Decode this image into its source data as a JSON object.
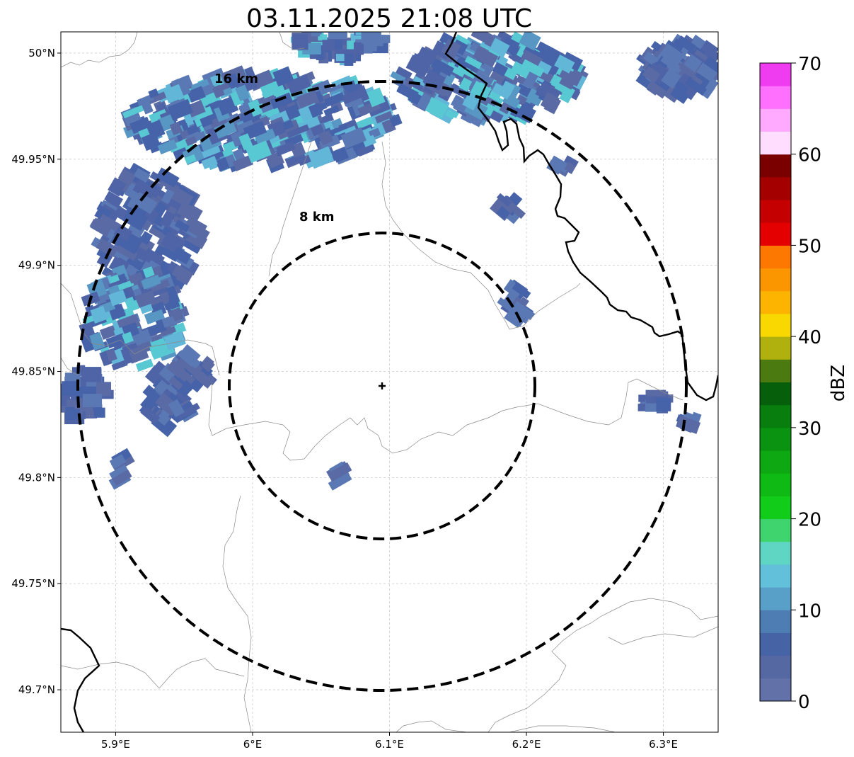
{
  "map": {
    "title": "03.11.2025 21:08 UTC",
    "x_ticks": [
      {
        "value": 5.9,
        "label": "5.9°E"
      },
      {
        "value": 6.0,
        "label": "6°E"
      },
      {
        "value": 6.1,
        "label": "6.1°E"
      },
      {
        "value": 6.2,
        "label": "6.2°E"
      },
      {
        "value": 6.3,
        "label": "6.3°E"
      }
    ],
    "y_ticks": [
      {
        "value": 50.0,
        "label": "50°N"
      },
      {
        "value": 49.95,
        "label": "49.95°N"
      },
      {
        "value": 49.9,
        "label": "49.9°N"
      },
      {
        "value": 49.85,
        "label": "49.85°N"
      },
      {
        "value": 49.8,
        "label": "49.8°N"
      },
      {
        "value": 49.75,
        "label": "49.75°N"
      },
      {
        "value": 49.7,
        "label": "49.7°N"
      }
    ],
    "lon_range": [
      5.86,
      6.34
    ],
    "lat_range": [
      49.68,
      50.01
    ],
    "radar_site": {
      "lon": 6.095,
      "lat": 49.843
    },
    "range_rings": [
      {
        "label": "8 km",
        "radius_km": 8
      },
      {
        "label": "16 km",
        "radius_km": 16
      }
    ],
    "grid": true
  },
  "colorbar": {
    "label": "dBZ",
    "ticks": [
      "0",
      "10",
      "20",
      "30",
      "40",
      "50",
      "60",
      "70"
    ],
    "min": 0,
    "max": 70,
    "colors": [
      "#6272a8",
      "#5668a2",
      "#4663a6",
      "#4e7db3",
      "#58a0c8",
      "#62c0db",
      "#5fd6c3",
      "#3fd46e",
      "#12cc1a",
      "#10ba14",
      "#0ea812",
      "#0a9310",
      "#087e0e",
      "#065f0a",
      "#4b7a10",
      "#b0b00e",
      "#f8d800",
      "#fcb400",
      "#fc9600",
      "#fc7800",
      "#e40000",
      "#c40000",
      "#a40000",
      "#7a0000",
      "#ffddff",
      "#ffaaff",
      "#ff70ff",
      "#f03cf0"
    ]
  }
}
